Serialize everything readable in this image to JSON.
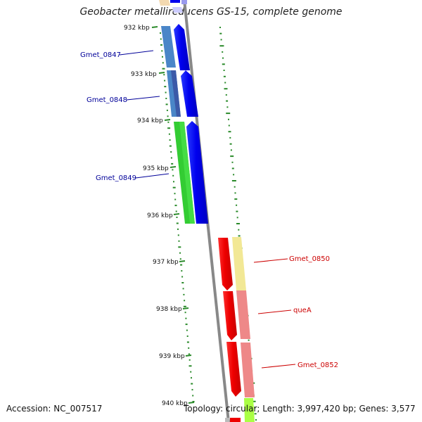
{
  "title": "Geobacter metallireducens GS-15, complete genome",
  "footer": {
    "accession": "Accession: NC_007517",
    "topology": "Topology: circular; Length: 3,997,420 bp; Genes: 3,577"
  },
  "axis": {
    "ticks": [
      "932 kbp",
      "933 kbp",
      "934 kbp",
      "935 kbp",
      "936 kbp",
      "937 kbp",
      "938 kbp",
      "939 kbp",
      "940 kbp"
    ]
  },
  "genes": [
    {
      "label": "Gmet_0847",
      "color": "#000099"
    },
    {
      "label": "Gmet_0848",
      "color": "#000099"
    },
    {
      "label": "Gmet_0849",
      "color": "#000099"
    },
    {
      "label": "Gmet_0850",
      "color": "#cc0000"
    },
    {
      "label": "queA",
      "color": "#cc0000"
    },
    {
      "label": "Gmet_0852",
      "color": "#cc0000"
    }
  ],
  "colors": {
    "backbone": "#8a8a8a",
    "forward_cds": "#0000ee",
    "reverse_cds": "#ee0000",
    "gc_skew": "#2a8a2a"
  }
}
